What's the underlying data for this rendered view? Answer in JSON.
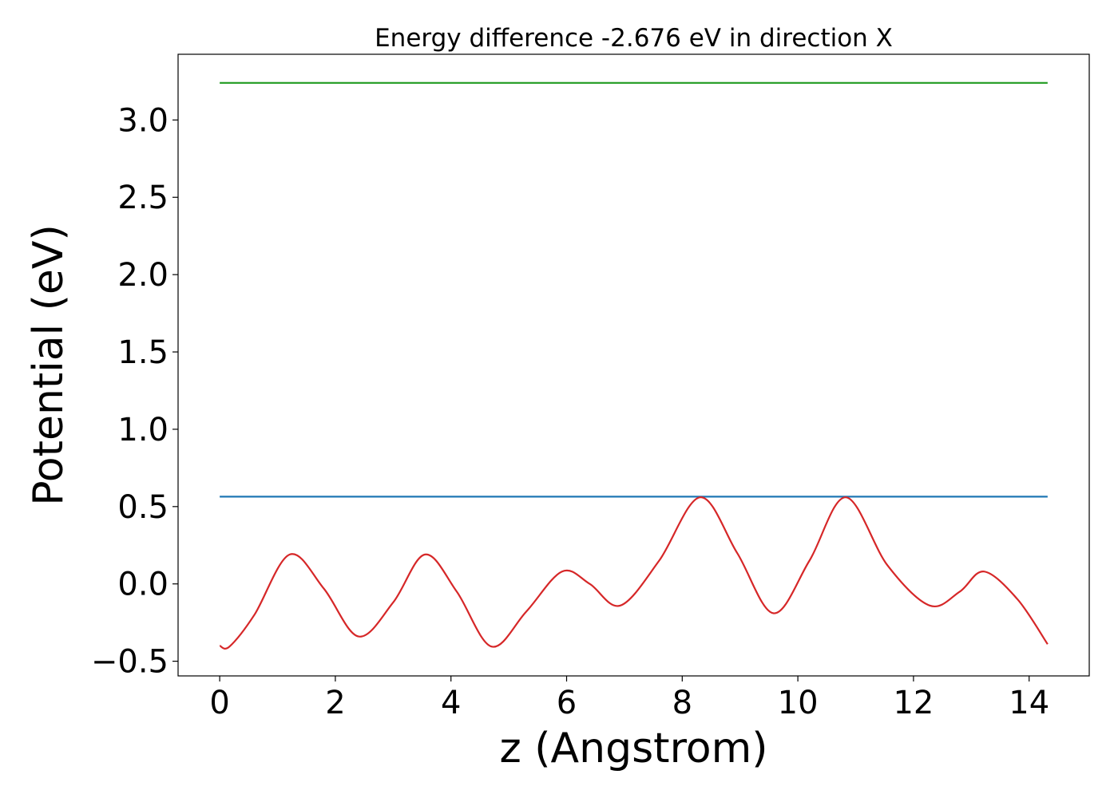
{
  "chart_data": {
    "type": "line",
    "title": "Energy difference -2.676 eV in direction X",
    "xlabel": "z (Angstrom)",
    "ylabel": "Potential (eV)",
    "xlim": [
      -0.72,
      15.04
    ],
    "ylim": [
      -0.595,
      3.425
    ],
    "xticks": [
      0,
      2,
      4,
      6,
      8,
      10,
      12,
      14
    ],
    "xtick_labels": [
      "0",
      "2",
      "4",
      "6",
      "8",
      "10",
      "12",
      "14"
    ],
    "yticks": [
      -0.5,
      0.0,
      0.5,
      1.0,
      1.5,
      2.0,
      2.5,
      3.0
    ],
    "ytick_labels": [
      "−0.5",
      "0.0",
      "0.5",
      "1.0",
      "1.5",
      "2.0",
      "2.5",
      "3.0"
    ],
    "grid": false,
    "legend": false,
    "series": [
      {
        "color": "#2ca02c",
        "x": [
          0,
          14.32
        ],
        "y": [
          3.24,
          3.24
        ]
      },
      {
        "color": "#1f77b4",
        "x": [
          0,
          14.32
        ],
        "y": [
          0.564,
          0.564
        ]
      },
      {
        "color": "#d62728",
        "x": [
          0,
          0.17,
          0.6,
          1.21,
          1.8,
          2.4,
          3.0,
          3.55,
          4.1,
          4.7,
          5.3,
          5.92,
          6.4,
          6.93,
          7.6,
          8.31,
          8.95,
          9.58,
          10.2,
          10.83,
          11.55,
          12.28,
          12.8,
          13.22,
          13.8,
          14.32
        ],
        "y": [
          -0.4,
          -0.405,
          -0.2,
          0.19,
          -0.03,
          -0.34,
          -0.12,
          0.19,
          -0.05,
          -0.405,
          -0.18,
          0.08,
          0.0,
          -0.14,
          0.15,
          0.56,
          0.2,
          -0.19,
          0.15,
          0.56,
          0.12,
          -0.14,
          -0.05,
          0.08,
          -0.1,
          -0.39
        ]
      }
    ]
  }
}
